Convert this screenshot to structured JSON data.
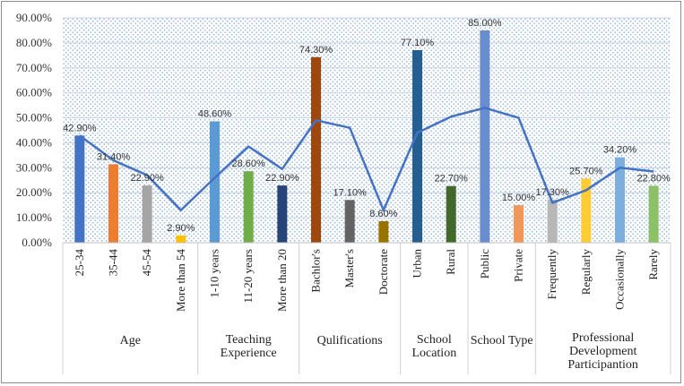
{
  "chart_data": {
    "type": "bar",
    "title": "",
    "xlabel": "",
    "ylabel": "",
    "ylim": [
      0,
      90
    ],
    "y_ticks": [
      "0.00%",
      "10.00%",
      "20.00%",
      "30.00%",
      "40.00%",
      "50.00%",
      "60.00%",
      "70.00%",
      "80.00%",
      "90.00%"
    ],
    "grid": true,
    "legend": "none",
    "categories": [
      "25-34",
      "35-44",
      "45-54",
      "More than 54",
      "1-10 years",
      "11-20 years",
      "More than 20",
      "Bachlor's",
      "Master's",
      "Doctorate",
      "Urban",
      "Rural",
      "Public",
      "Private",
      "Frequently",
      "Regularly",
      "Occasionally",
      "Rarely"
    ],
    "values": [
      42.9,
      31.4,
      22.9,
      2.9,
      48.6,
      28.6,
      22.9,
      74.3,
      17.1,
      8.6,
      77.1,
      22.7,
      85.0,
      15.0,
      17.3,
      25.7,
      34.2,
      22.8
    ],
    "value_labels": [
      "42.90%",
      "31.40%",
      "22.90%",
      "2.90%",
      "48.60%",
      "28.60%",
      "22.90%",
      "74.30%",
      "17.10%",
      "8.60%",
      "77.10%",
      "22.70%",
      "85.00%",
      "15.00%",
      "17.30%",
      "25.70%",
      "34.20%",
      "22.80%"
    ],
    "bar_colors": [
      "#4472c4",
      "#ed7d31",
      "#a5a5a5",
      "#ffc000",
      "#5b9bd5",
      "#70ad47",
      "#264478",
      "#9e480e",
      "#636363",
      "#997300",
      "#255e91",
      "#43682b",
      "#698ed0",
      "#f1975a",
      "#b7b7b7",
      "#ffcd33",
      "#7cafdd",
      "#8cc168"
    ],
    "line_series": {
      "values": [
        42.9,
        33.0,
        27.0,
        13.0,
        26.0,
        38.5,
        29.5,
        49.0,
        46.0,
        13.0,
        44.0,
        50.5,
        54.0,
        50.0,
        16.0,
        21.0,
        30.0,
        28.5
      ],
      "color": "#4472c4"
    },
    "groups": [
      {
        "lines": [
          "Age"
        ],
        "start": 0,
        "end": 3
      },
      {
        "lines": [
          "Teaching",
          "Experience"
        ],
        "start": 4,
        "end": 6
      },
      {
        "lines": [
          "Qulifications"
        ],
        "start": 7,
        "end": 9
      },
      {
        "lines": [
          "School",
          "Location"
        ],
        "start": 10,
        "end": 11
      },
      {
        "lines": [
          "School Type"
        ],
        "start": 12,
        "end": 13
      },
      {
        "lines": [
          "Professional",
          "Development",
          "Participantion"
        ],
        "start": 14,
        "end": 17
      }
    ]
  }
}
